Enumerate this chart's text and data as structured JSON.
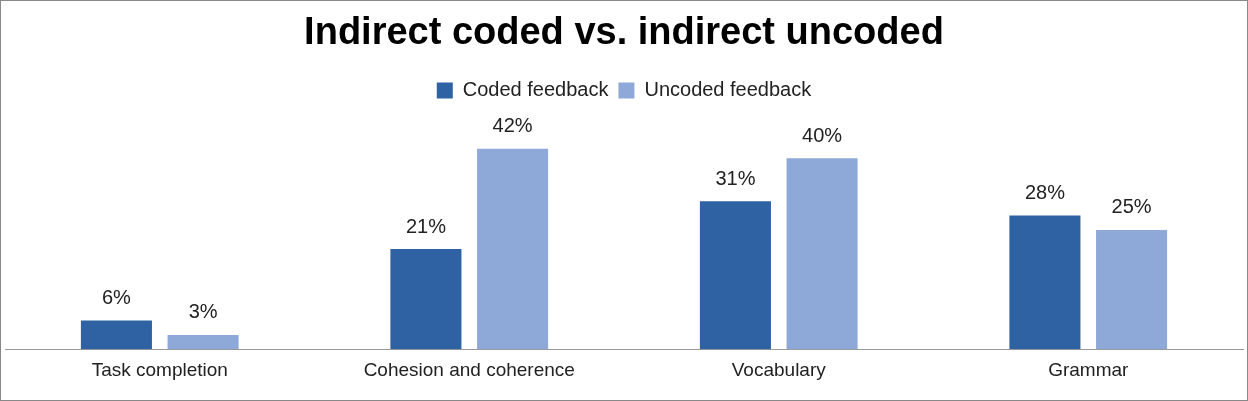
{
  "chart_data": {
    "type": "bar",
    "title": "Indirect coded vs. indirect uncoded",
    "categories": [
      "Task completion",
      "Cohesion and coherence",
      "Vocabulary",
      "Grammar"
    ],
    "series": [
      {
        "name": "Coded feedback",
        "color": "#2f62a3",
        "values": [
          6,
          21,
          31,
          28
        ],
        "value_labels": [
          "6%",
          "21%",
          "31%",
          "28%"
        ]
      },
      {
        "name": "Uncoded feedback",
        "color": "#8ea9d8",
        "values": [
          3,
          42,
          40,
          25
        ],
        "value_labels": [
          "3%",
          "42%",
          "40%",
          "25%"
        ]
      }
    ],
    "legend": "top",
    "grid": false,
    "tick_labels": "x"
  }
}
